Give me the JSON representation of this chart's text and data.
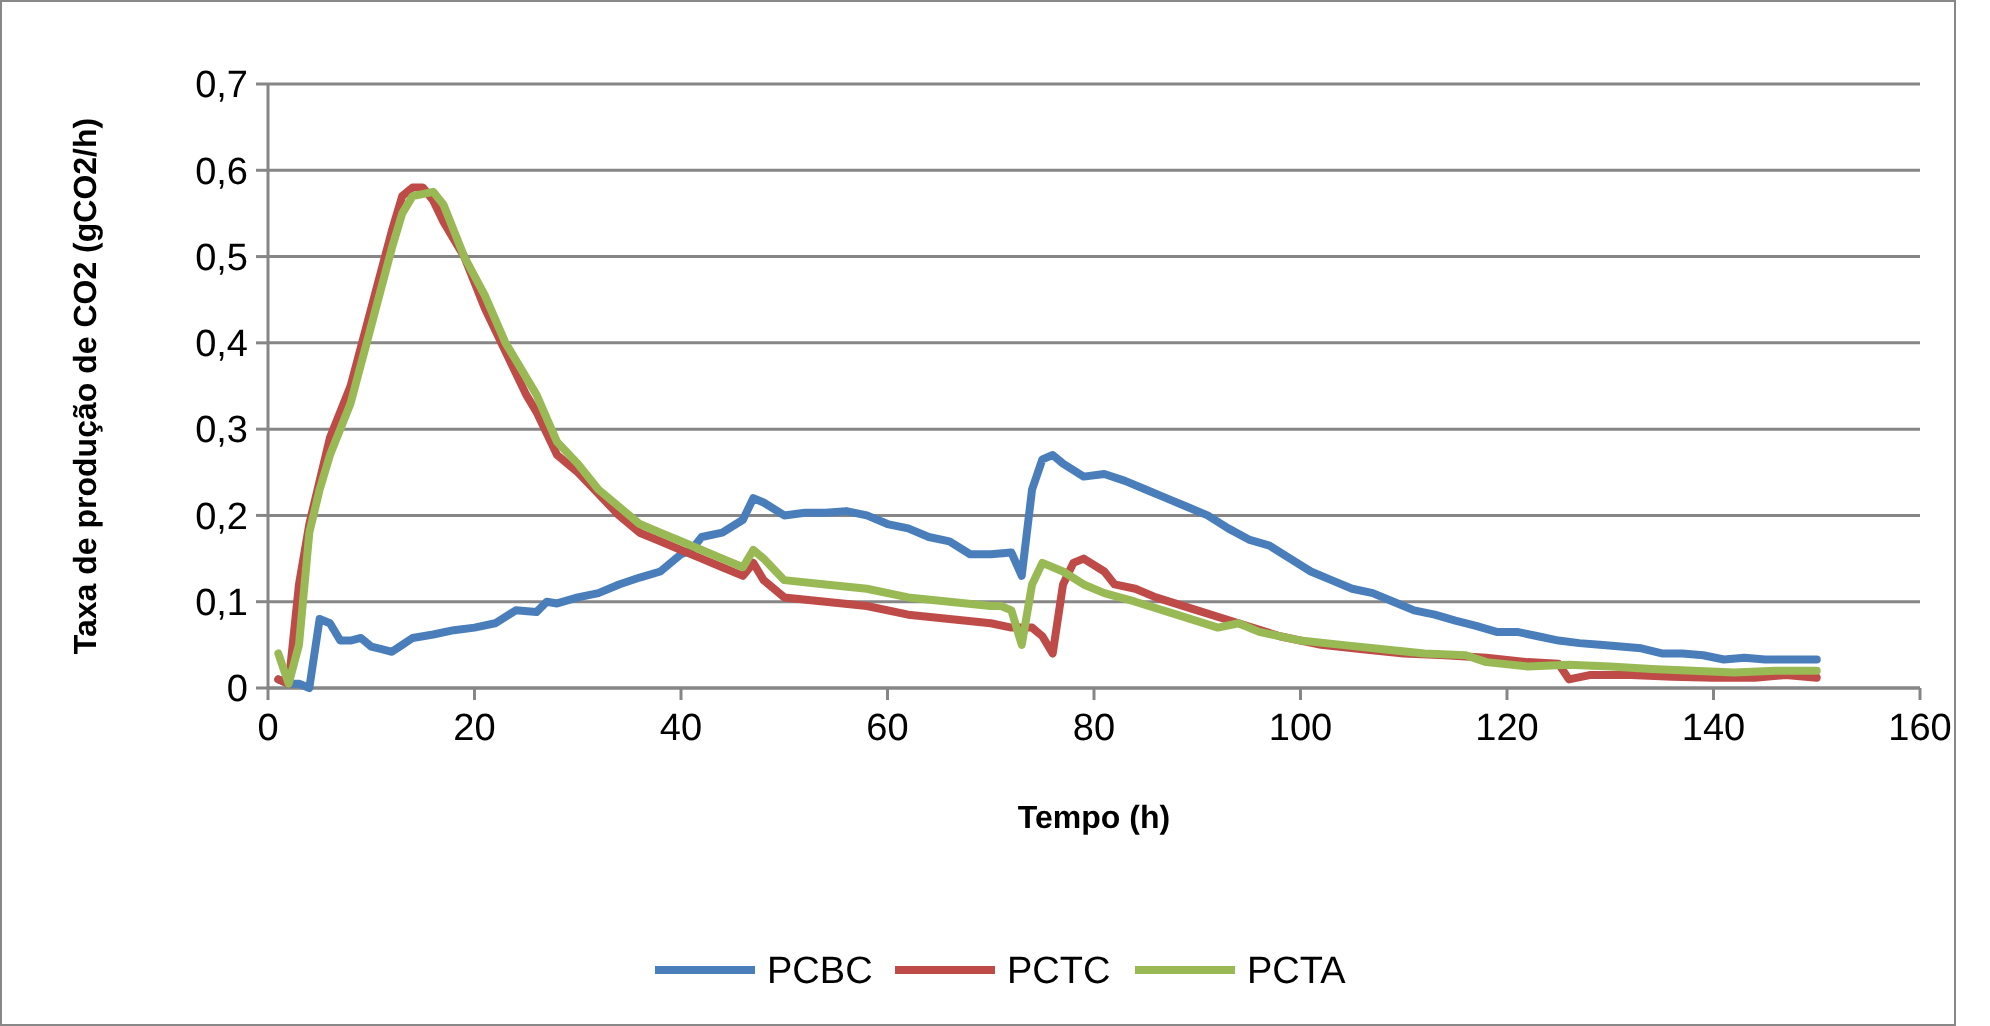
{
  "chart_data": {
    "type": "line",
    "xlabel": "Tempo (h)",
    "ylabel": "Taxa de produção de CO2 (gCO2/h)",
    "xlim": [
      0,
      160
    ],
    "xticks": [
      0,
      20,
      40,
      60,
      80,
      100,
      120,
      140,
      160
    ],
    "ylim": [
      0,
      0.7
    ],
    "yticks": [
      {
        "value": 0,
        "label": "0"
      },
      {
        "value": 0.1,
        "label": "0,1"
      },
      {
        "value": 0.2,
        "label": "0,2"
      },
      {
        "value": 0.3,
        "label": "0,3"
      },
      {
        "value": 0.4,
        "label": "0,4"
      },
      {
        "value": 0.5,
        "label": "0,5"
      },
      {
        "value": 0.6,
        "label": "0,6"
      },
      {
        "value": 0.7,
        "label": "0,7"
      }
    ],
    "grid": "y",
    "legend": "bottom",
    "marker": "none",
    "line_style": "solid",
    "series": [
      {
        "name": "PCBC",
        "color": "#4a7ebb",
        "x": [
          1,
          2,
          3,
          4,
          5,
          6,
          7,
          8,
          9,
          10,
          11,
          12,
          13,
          14,
          16,
          18,
          20,
          22,
          24,
          26,
          27,
          28,
          30,
          32,
          34,
          36,
          38,
          40,
          41,
          42,
          44,
          46,
          47,
          48,
          50,
          52,
          54,
          56,
          58,
          60,
          62,
          64,
          66,
          68,
          70,
          72,
          73,
          74,
          75,
          76,
          77,
          79,
          81,
          83,
          85,
          87,
          89,
          91,
          93,
          95,
          97,
          99,
          101,
          103,
          105,
          107,
          109,
          111,
          113,
          115,
          117,
          119,
          121,
          123,
          125,
          127,
          129,
          131,
          133,
          135,
          137,
          139,
          141,
          143,
          145,
          147,
          150
        ],
        "values": [
          0.01,
          0.005,
          0.005,
          0.0,
          0.08,
          0.075,
          0.055,
          0.055,
          0.058,
          0.048,
          0.045,
          0.042,
          0.05,
          0.058,
          0.062,
          0.067,
          0.07,
          0.075,
          0.09,
          0.088,
          0.1,
          0.098,
          0.105,
          0.11,
          0.12,
          0.128,
          0.135,
          0.155,
          0.16,
          0.175,
          0.18,
          0.195,
          0.22,
          0.215,
          0.2,
          0.203,
          0.203,
          0.205,
          0.2,
          0.19,
          0.185,
          0.175,
          0.17,
          0.155,
          0.155,
          0.157,
          0.13,
          0.23,
          0.265,
          0.27,
          0.26,
          0.245,
          0.248,
          0.24,
          0.23,
          0.22,
          0.21,
          0.2,
          0.185,
          0.172,
          0.165,
          0.15,
          0.135,
          0.125,
          0.115,
          0.11,
          0.1,
          0.09,
          0.085,
          0.078,
          0.072,
          0.065,
          0.065,
          0.06,
          0.055,
          0.052,
          0.05,
          0.048,
          0.046,
          0.04,
          0.04,
          0.038,
          0.033,
          0.035,
          0.033,
          0.033,
          0.033
        ]
      },
      {
        "name": "PCTC",
        "color": "#be4b48",
        "x": [
          1,
          2,
          3,
          4,
          5,
          6,
          8,
          10,
          12,
          13,
          14,
          15,
          16,
          17,
          19,
          21,
          23,
          25,
          26,
          28,
          29,
          30,
          32,
          34,
          36,
          38,
          40,
          42,
          44,
          46,
          47,
          48,
          50,
          54,
          58,
          62,
          66,
          70,
          72,
          73,
          74,
          75,
          76,
          77,
          78,
          79,
          81,
          82,
          84,
          86,
          90,
          94,
          98,
          102,
          106,
          110,
          114,
          118,
          122,
          125,
          126,
          128,
          132,
          136,
          140,
          144,
          147,
          150
        ],
        "values": [
          0.01,
          0.005,
          0.12,
          0.19,
          0.24,
          0.29,
          0.35,
          0.44,
          0.53,
          0.57,
          0.58,
          0.58,
          0.565,
          0.54,
          0.5,
          0.44,
          0.39,
          0.34,
          0.32,
          0.27,
          0.26,
          0.25,
          0.225,
          0.2,
          0.18,
          0.17,
          0.16,
          0.15,
          0.14,
          0.13,
          0.145,
          0.125,
          0.105,
          0.1,
          0.095,
          0.085,
          0.08,
          0.075,
          0.07,
          0.07,
          0.07,
          0.06,
          0.04,
          0.12,
          0.145,
          0.15,
          0.135,
          0.12,
          0.115,
          0.105,
          0.09,
          0.075,
          0.06,
          0.05,
          0.045,
          0.04,
          0.038,
          0.035,
          0.03,
          0.028,
          0.01,
          0.015,
          0.015,
          0.013,
          0.012,
          0.012,
          0.015,
          0.012
        ]
      },
      {
        "name": "PCTA",
        "color": "#98b954",
        "x": [
          1,
          2,
          3,
          4,
          5,
          6,
          8,
          10,
          12,
          13,
          14,
          16,
          17,
          19,
          21,
          23,
          25,
          26,
          28,
          30,
          32,
          34,
          36,
          38,
          40,
          42,
          44,
          46,
          47,
          48,
          50,
          54,
          58,
          62,
          66,
          70,
          71,
          72,
          73,
          74,
          75,
          77,
          79,
          81,
          84,
          88,
          92,
          94,
          96,
          100,
          104,
          108,
          112,
          116,
          118,
          122,
          126,
          130,
          134,
          138,
          142,
          146,
          150
        ],
        "values": [
          0.04,
          0.005,
          0.05,
          0.18,
          0.23,
          0.27,
          0.33,
          0.42,
          0.51,
          0.55,
          0.57,
          0.575,
          0.56,
          0.5,
          0.455,
          0.4,
          0.36,
          0.34,
          0.285,
          0.26,
          0.23,
          0.21,
          0.19,
          0.18,
          0.17,
          0.16,
          0.15,
          0.14,
          0.16,
          0.15,
          0.125,
          0.12,
          0.115,
          0.105,
          0.1,
          0.095,
          0.095,
          0.09,
          0.05,
          0.12,
          0.145,
          0.135,
          0.12,
          0.11,
          0.1,
          0.085,
          0.07,
          0.075,
          0.065,
          0.055,
          0.05,
          0.045,
          0.04,
          0.038,
          0.03,
          0.025,
          0.027,
          0.025,
          0.022,
          0.02,
          0.018,
          0.02,
          0.02
        ]
      }
    ]
  }
}
